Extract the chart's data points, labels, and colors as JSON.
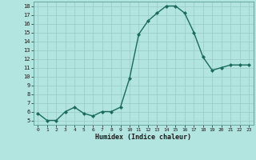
{
  "x": [
    0,
    1,
    2,
    3,
    4,
    5,
    6,
    7,
    8,
    9,
    10,
    11,
    12,
    13,
    14,
    15,
    16,
    17,
    18,
    19,
    20,
    21,
    22,
    23
  ],
  "y": [
    5.8,
    5.0,
    5.0,
    6.0,
    6.5,
    5.8,
    5.5,
    6.0,
    6.0,
    6.5,
    9.8,
    14.8,
    16.3,
    17.2,
    18.0,
    18.0,
    17.2,
    15.0,
    12.2,
    10.7,
    11.0,
    11.3,
    11.3,
    11.3
  ],
  "line_color": "#1a6b5a",
  "marker_color": "#1a6b5a",
  "bg_color": "#b2e4e0",
  "grid_color": "#9ececa",
  "xlabel": "Humidex (Indice chaleur)",
  "xlim": [
    -0.5,
    23.5
  ],
  "ylim": [
    4.5,
    18.5
  ],
  "yticks": [
    5,
    6,
    7,
    8,
    9,
    10,
    11,
    12,
    13,
    14,
    15,
    16,
    17,
    18
  ],
  "xticks": [
    0,
    1,
    2,
    3,
    4,
    5,
    6,
    7,
    8,
    9,
    10,
    11,
    12,
    13,
    14,
    15,
    16,
    17,
    18,
    19,
    20,
    21,
    22,
    23
  ]
}
